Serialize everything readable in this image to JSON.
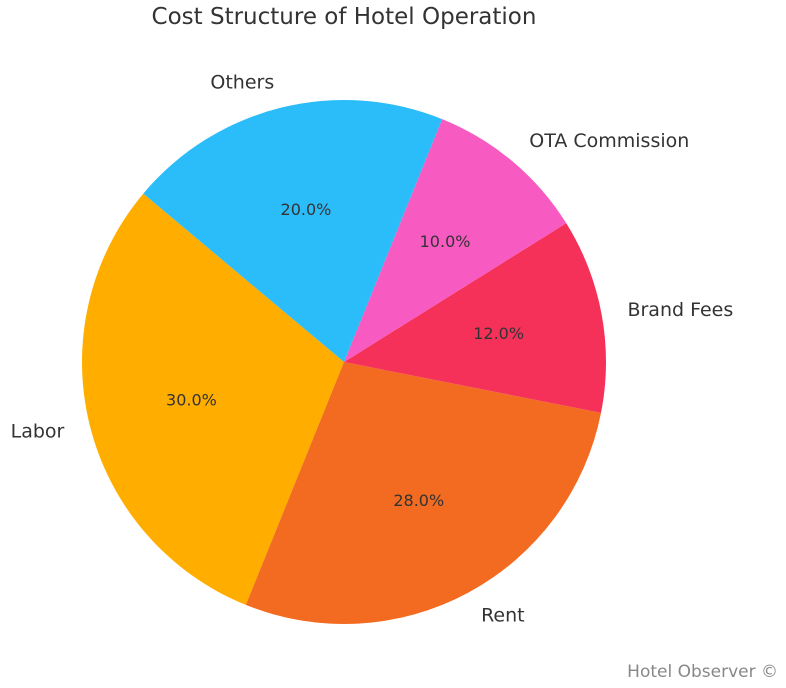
{
  "chart_data": {
    "type": "pie",
    "title": "Cost Structure of Hotel Operation",
    "slices": [
      {
        "label": "Labor",
        "value": 30.0,
        "pct_label": "30.0%",
        "color": "#FFAE00"
      },
      {
        "label": "Rent",
        "value": 28.0,
        "pct_label": "28.0%",
        "color": "#F26B21"
      },
      {
        "label": "Brand Fees",
        "value": 12.0,
        "pct_label": "12.0%",
        "color": "#F53159"
      },
      {
        "label": "OTA Commission",
        "value": 10.0,
        "pct_label": "10.0%",
        "color": "#F75BC2"
      },
      {
        "label": "Others",
        "value": 20.0,
        "pct_label": "20.0%",
        "color": "#2BBCFA"
      }
    ],
    "start_angle_deg": 140,
    "direction": "counterclockwise",
    "legend": "none"
  },
  "watermark": "Hotel Observer ©"
}
